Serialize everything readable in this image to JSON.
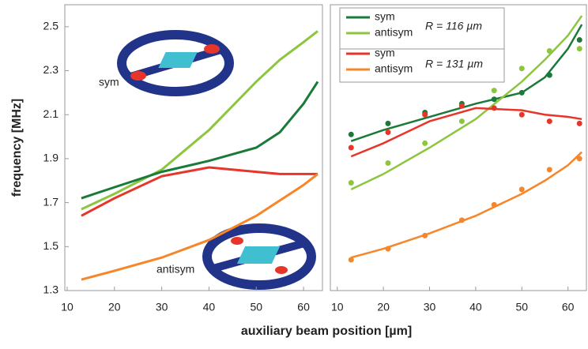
{
  "chart_data": [
    {
      "type": "line",
      "ylabel": "frequency [MHz]",
      "xlabel": "auxiliary beam position [µm]",
      "x": [
        13,
        20,
        30,
        40,
        50,
        55,
        60,
        63
      ],
      "series": [
        {
          "color": "#8cc63f",
          "values": [
            1.67,
            1.74,
            1.85,
            2.03,
            2.25,
            2.35,
            2.43,
            2.48
          ]
        },
        {
          "color": "#1a7a3a",
          "values": [
            1.72,
            1.77,
            1.84,
            1.89,
            1.95,
            2.02,
            2.15,
            2.25
          ]
        },
        {
          "color": "#e8352a",
          "values": [
            1.64,
            1.72,
            1.82,
            1.86,
            1.84,
            1.83,
            1.83,
            1.83
          ]
        },
        {
          "color": "#f7862a",
          "values": [
            1.35,
            1.39,
            1.45,
            1.53,
            1.64,
            1.71,
            1.78,
            1.83
          ]
        }
      ],
      "annotations": [
        "sym",
        "antisym"
      ],
      "xlim": [
        9.5,
        64
      ],
      "ylim": [
        1.3,
        2.6
      ],
      "xticks": [
        10,
        20,
        30,
        40,
        50,
        60
      ],
      "yticks": [
        1.3,
        1.5,
        1.7,
        1.9,
        2.1,
        2.3,
        2.5
      ]
    },
    {
      "type": "scatter",
      "x": [
        13,
        21,
        29,
        37,
        44,
        50,
        56,
        62.5
      ],
      "fit_x": [
        13,
        20,
        30,
        40,
        50,
        55,
        60,
        63
      ],
      "series": [
        {
          "name": "sym",
          "color": "#1a7a3a",
          "values": [
            2.01,
            2.06,
            2.11,
            2.15,
            2.17,
            2.2,
            2.28,
            2.44
          ],
          "fit": [
            1.98,
            2.03,
            2.09,
            2.15,
            2.2,
            2.27,
            2.4,
            2.51
          ]
        },
        {
          "name": "antisym",
          "color": "#8cc63f",
          "values": [
            1.79,
            1.88,
            1.97,
            2.07,
            2.21,
            2.31,
            2.39,
            2.4
          ],
          "fit": [
            1.76,
            1.83,
            1.95,
            2.08,
            2.25,
            2.35,
            2.46,
            2.55
          ]
        },
        {
          "name": "sym",
          "color": "#e8352a",
          "values": [
            1.95,
            2.02,
            2.1,
            2.14,
            2.13,
            2.1,
            2.07,
            2.06
          ],
          "fit": [
            1.91,
            1.97,
            2.07,
            2.13,
            2.12,
            2.1,
            2.09,
            2.08
          ]
        },
        {
          "name": "antisym",
          "color": "#f7862a",
          "values": [
            1.44,
            1.49,
            1.55,
            1.62,
            1.69,
            1.76,
            1.85,
            1.9
          ],
          "fit": [
            1.45,
            1.49,
            1.56,
            1.64,
            1.74,
            1.8,
            1.87,
            1.93
          ]
        }
      ],
      "annotations": [
        "R = 116 µm",
        "R = 131 µm"
      ],
      "xlim": [
        8.5,
        64
      ],
      "ylim": [
        1.3,
        2.6
      ],
      "xticks": [
        10,
        20,
        30,
        40,
        50,
        60
      ]
    }
  ]
}
